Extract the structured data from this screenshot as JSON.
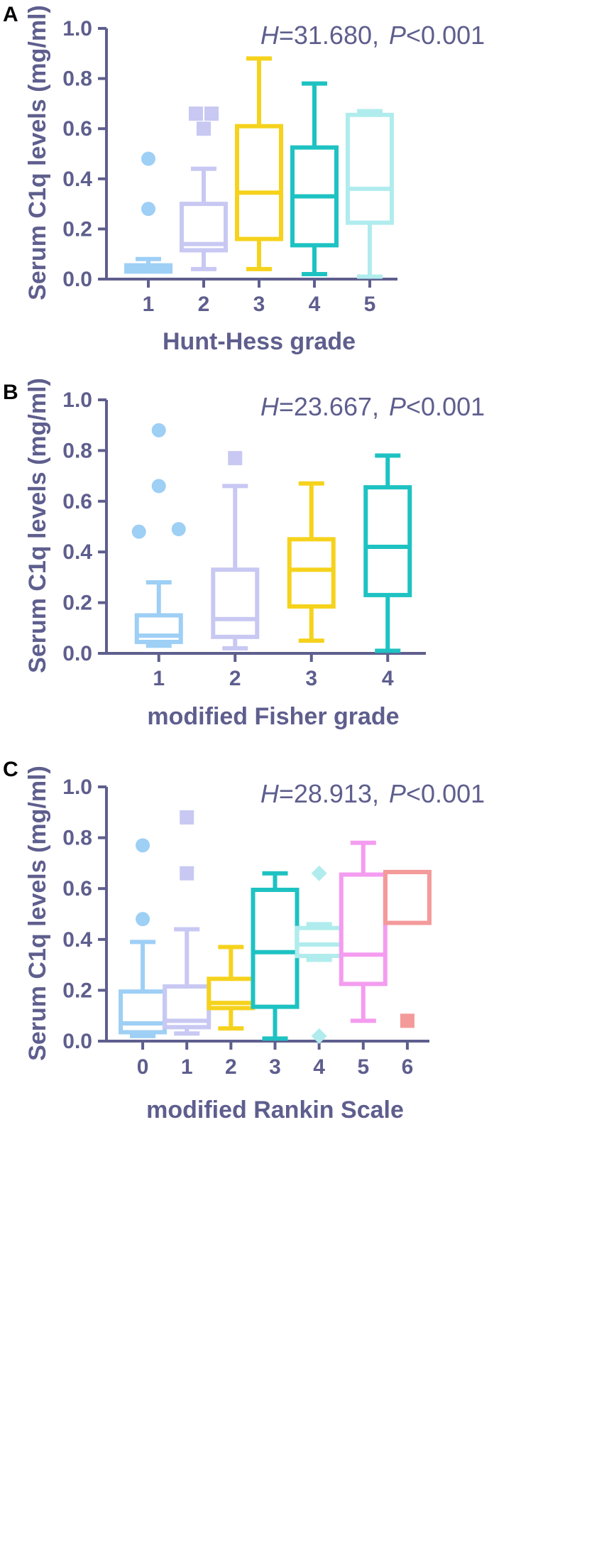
{
  "figure": {
    "background": "#ffffff",
    "axis_color": "#5e5e8e"
  },
  "chart_data": [
    {
      "type": "box",
      "panel": "A",
      "stat": {
        "H_symbol": "H",
        "H_value": "=31.680,",
        "P_symbol": "P",
        "P_value": "<0.001"
      },
      "xlabel": "Hunt-Hess grade",
      "ylabel": "Serum C1q levels (mg/ml)",
      "ylim": [
        0,
        1
      ],
      "yticks": [
        "0.0",
        "0.2",
        "0.4",
        "0.6",
        "0.8",
        "1.0"
      ],
      "groups": [
        {
          "label": "1",
          "color": "#9ecff5",
          "q1": 0.03,
          "median": 0.04,
          "q3": 0.055,
          "whisker_low": 0.03,
          "whisker_high": 0.08,
          "outliers": [
            0.48,
            0.28
          ],
          "marker": "circle"
        },
        {
          "label": "2",
          "color": "#c8c8f3",
          "q1": 0.115,
          "median": 0.14,
          "q3": 0.3,
          "whisker_low": 0.04,
          "whisker_high": 0.44,
          "outliers": [
            0.66,
            0.66,
            0.6
          ],
          "marker": "square"
        },
        {
          "label": "3",
          "color": "#f5d21c",
          "q1": 0.16,
          "median": 0.345,
          "q3": 0.61,
          "whisker_low": 0.04,
          "whisker_high": 0.88,
          "outliers": [],
          "marker": "none"
        },
        {
          "label": "4",
          "color": "#1ec2c2",
          "q1": 0.135,
          "median": 0.33,
          "q3": 0.525,
          "whisker_low": 0.02,
          "whisker_high": 0.78,
          "outliers": [],
          "marker": "none"
        },
        {
          "label": "5",
          "color": "#b0eced",
          "q1": 0.225,
          "median": 0.36,
          "q3": 0.655,
          "whisker_low": 0.01,
          "whisker_high": 0.67,
          "outliers": [],
          "marker": "none"
        }
      ]
    },
    {
      "type": "box",
      "panel": "B",
      "stat": {
        "H_symbol": "H",
        "H_value": "=23.667,",
        "P_symbol": "P",
        "P_value": "<0.001"
      },
      "xlabel": "modified Fisher grade",
      "ylabel": "Serum C1q levels (mg/ml)",
      "ylim": [
        0,
        1
      ],
      "yticks": [
        "0.0",
        "0.2",
        "0.4",
        "0.6",
        "0.8",
        "1.0"
      ],
      "groups": [
        {
          "label": "1",
          "color": "#9ecff5",
          "q1": 0.045,
          "median": 0.07,
          "q3": 0.15,
          "whisker_low": 0.03,
          "whisker_high": 0.28,
          "outliers": [
            0.88,
            0.66,
            0.48,
            0.49
          ],
          "marker": "circle"
        },
        {
          "label": "2",
          "color": "#c8c8f3",
          "q1": 0.065,
          "median": 0.135,
          "q3": 0.33,
          "whisker_low": 0.02,
          "whisker_high": 0.66,
          "outliers": [
            0.77
          ],
          "marker": "square"
        },
        {
          "label": "3",
          "color": "#f5d21c",
          "q1": 0.185,
          "median": 0.33,
          "q3": 0.45,
          "whisker_low": 0.05,
          "whisker_high": 0.67,
          "outliers": [],
          "marker": "none"
        },
        {
          "label": "4",
          "color": "#1ec2c2",
          "q1": 0.23,
          "median": 0.42,
          "q3": 0.655,
          "whisker_low": 0.01,
          "whisker_high": 0.78,
          "outliers": [],
          "marker": "none"
        }
      ]
    },
    {
      "type": "box",
      "panel": "C",
      "stat": {
        "H_symbol": "H",
        "H_value": "=28.913,",
        "P_symbol": "P",
        "P_value": "<0.001"
      },
      "xlabel": "modified Rankin Scale",
      "ylabel": "Serum C1q levels (mg/ml)",
      "ylim": [
        0,
        1
      ],
      "yticks": [
        "0.0",
        "0.2",
        "0.4",
        "0.6",
        "0.8",
        "1.0"
      ],
      "groups": [
        {
          "label": "0",
          "color": "#9ecff5",
          "q1": 0.035,
          "median": 0.07,
          "q3": 0.195,
          "whisker_low": 0.02,
          "whisker_high": 0.39,
          "outliers": [
            0.77,
            0.48
          ],
          "marker": "circle"
        },
        {
          "label": "1",
          "color": "#c8c8f3",
          "q1": 0.055,
          "median": 0.08,
          "q3": 0.215,
          "whisker_low": 0.03,
          "whisker_high": 0.44,
          "outliers": [
            0.88,
            0.66
          ],
          "marker": "square"
        },
        {
          "label": "2",
          "color": "#f5d21c",
          "q1": 0.13,
          "median": 0.15,
          "q3": 0.245,
          "whisker_low": 0.05,
          "whisker_high": 0.37,
          "outliers": [],
          "marker": "none"
        },
        {
          "label": "3",
          "color": "#1ec2c2",
          "q1": 0.135,
          "median": 0.35,
          "q3": 0.595,
          "whisker_low": 0.01,
          "whisker_high": 0.66,
          "outliers": [],
          "marker": "none"
        },
        {
          "label": "4",
          "color": "#b0eced",
          "q1": 0.335,
          "median": 0.38,
          "q3": 0.445,
          "whisker_low": 0.32,
          "whisker_high": 0.46,
          "outliers": [
            0.66,
            0.02
          ],
          "marker": "diamond"
        },
        {
          "label": "5",
          "color": "#f49cf0",
          "q1": 0.225,
          "median": 0.34,
          "q3": 0.655,
          "whisker_low": 0.08,
          "whisker_high": 0.78,
          "outliers": [],
          "marker": "none"
        },
        {
          "label": "6",
          "color": "#f49a9a",
          "q1": 0.465,
          "median": 0.665,
          "q3": 0.665,
          "whisker_low": 0.465,
          "whisker_high": 0.665,
          "outliers": [
            0.08
          ],
          "marker": "square"
        }
      ]
    }
  ]
}
